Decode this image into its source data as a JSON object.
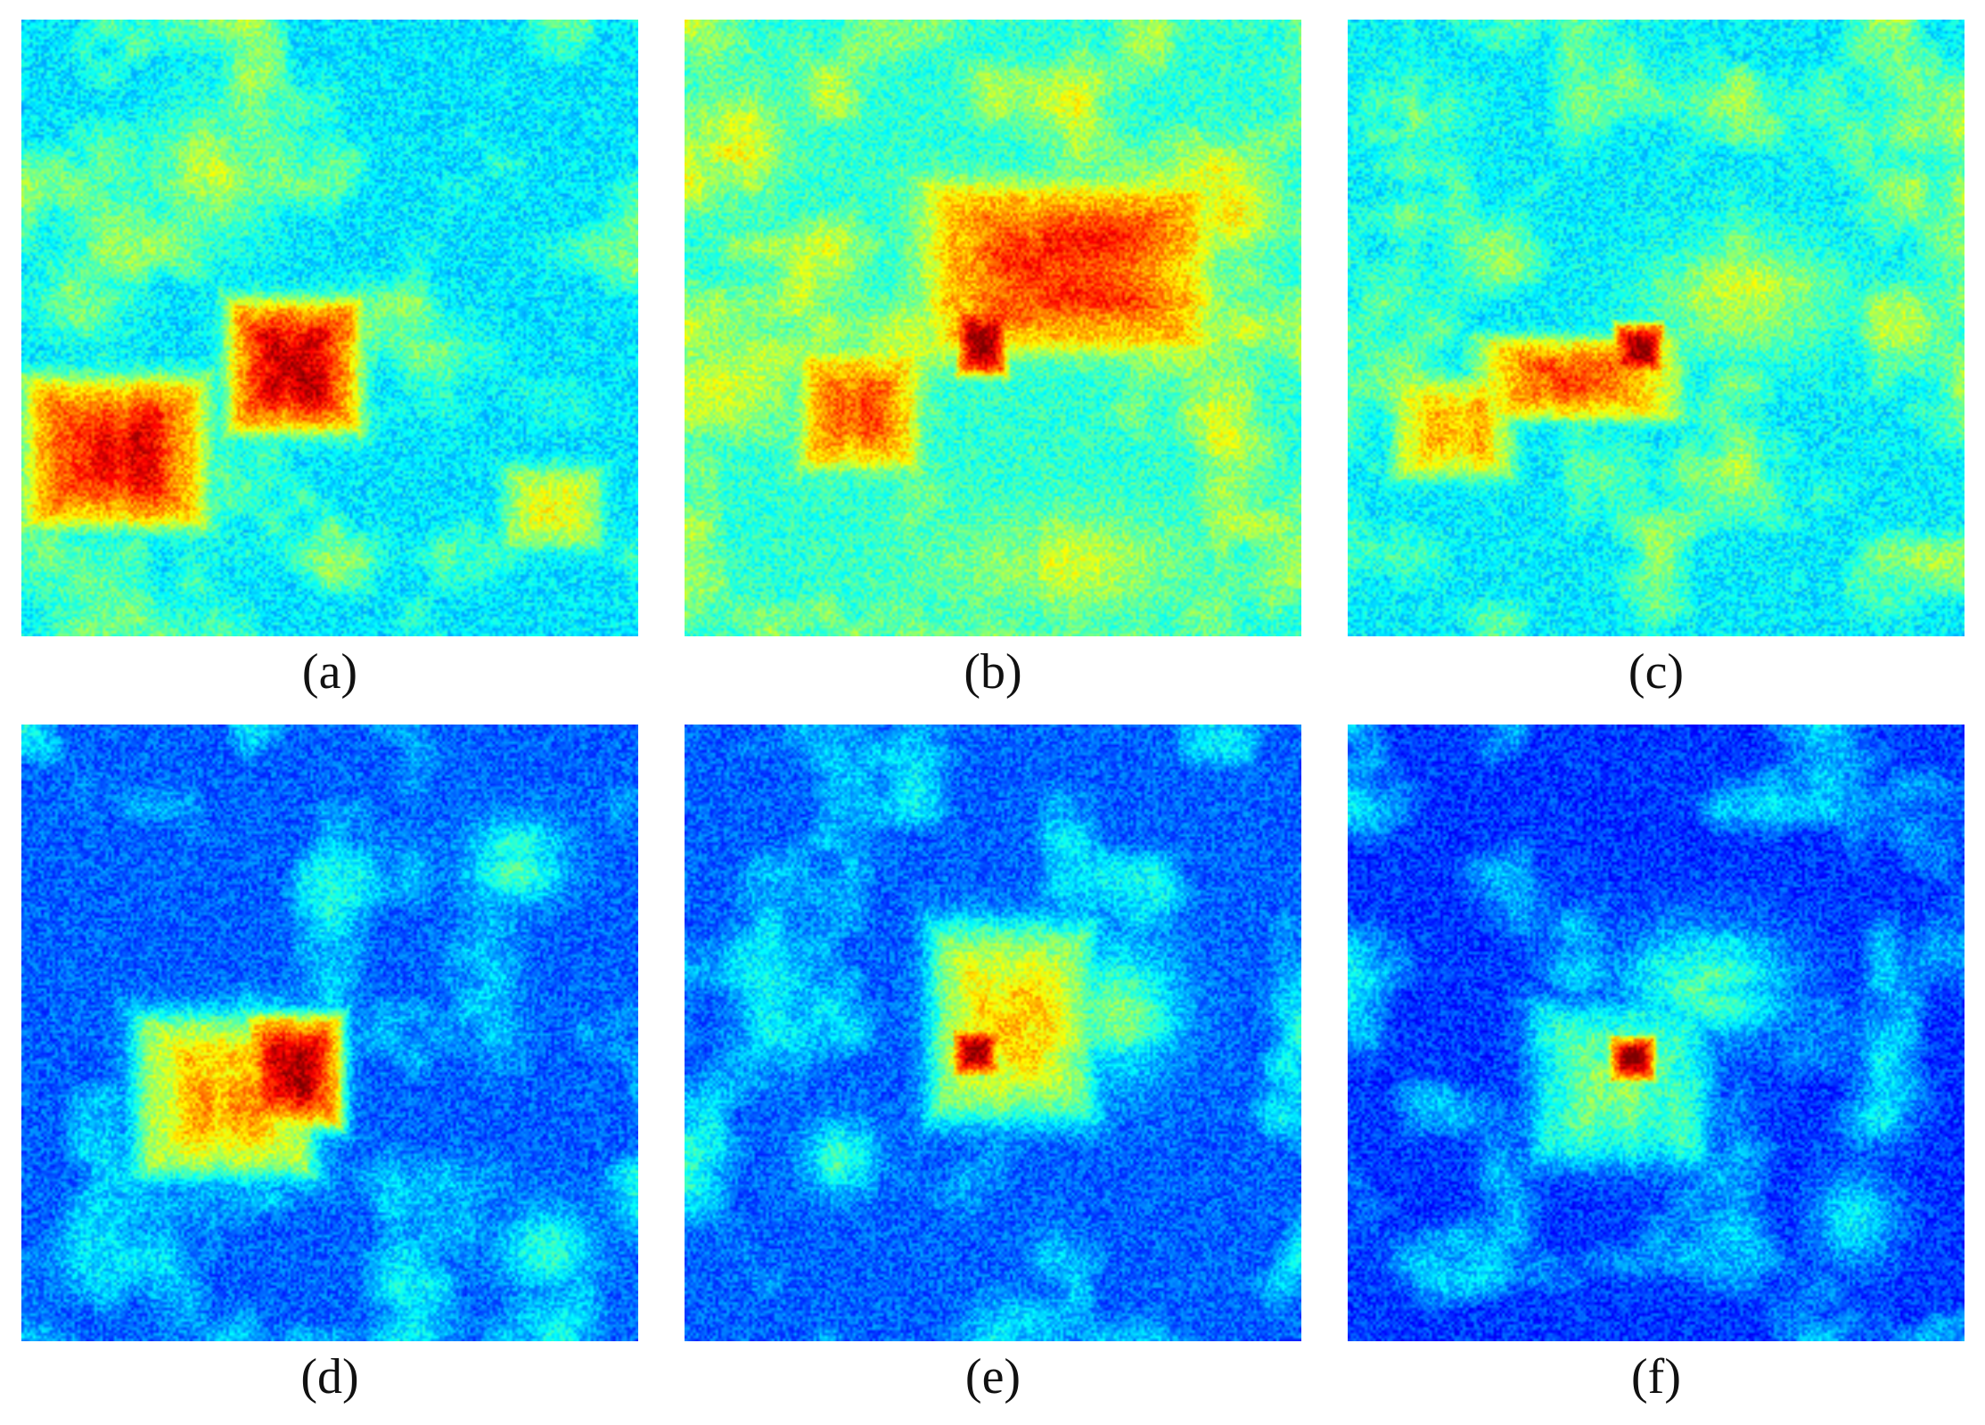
{
  "chart_data": [
    {
      "type": "heatmap",
      "caption": "(a)",
      "colormap": "jet",
      "hotspots": [
        {
          "cx": 0.44,
          "cy": 0.56,
          "rx": 0.08,
          "ry": 0.08,
          "value": 0.95,
          "shape": "square"
        },
        {
          "cx": 0.15,
          "cy": 0.7,
          "rx": 0.11,
          "ry": 0.09,
          "value": 0.9,
          "shape": "square"
        },
        {
          "cx": 0.86,
          "cy": 0.79,
          "rx": 0.06,
          "ry": 0.05,
          "value": 0.6,
          "shape": "square"
        },
        {
          "cx": 0.3,
          "cy": 0.25,
          "rx": 0.1,
          "ry": 0.12,
          "value": 0.55,
          "shape": "blob"
        },
        {
          "cx": 0.1,
          "cy": 0.45,
          "rx": 0.08,
          "ry": 0.07,
          "value": 0.5,
          "shape": "blob"
        }
      ],
      "background": 0.35
    },
    {
      "type": "heatmap",
      "caption": "(b)",
      "colormap": "jet",
      "hotspots": [
        {
          "cx": 0.48,
          "cy": 0.52,
          "rx": 0.03,
          "ry": 0.04,
          "value": 1.0,
          "shape": "square"
        },
        {
          "cx": 0.62,
          "cy": 0.4,
          "rx": 0.17,
          "ry": 0.1,
          "value": 0.85,
          "shape": "square"
        },
        {
          "cx": 0.28,
          "cy": 0.63,
          "rx": 0.07,
          "ry": 0.07,
          "value": 0.78,
          "shape": "square"
        },
        {
          "cx": 0.08,
          "cy": 0.2,
          "rx": 0.08,
          "ry": 0.09,
          "value": 0.6,
          "shape": "blob"
        },
        {
          "cx": 0.88,
          "cy": 0.3,
          "rx": 0.08,
          "ry": 0.08,
          "value": 0.62,
          "shape": "blob"
        },
        {
          "cx": 0.6,
          "cy": 0.88,
          "rx": 0.2,
          "ry": 0.08,
          "value": 0.55,
          "shape": "blob"
        }
      ],
      "background": 0.42
    },
    {
      "type": "heatmap",
      "caption": "(c)",
      "colormap": "jet",
      "hotspots": [
        {
          "cx": 0.47,
          "cy": 0.53,
          "rx": 0.03,
          "ry": 0.03,
          "value": 1.0,
          "shape": "square"
        },
        {
          "cx": 0.37,
          "cy": 0.58,
          "rx": 0.12,
          "ry": 0.05,
          "value": 0.8,
          "shape": "square"
        },
        {
          "cx": 0.17,
          "cy": 0.66,
          "rx": 0.07,
          "ry": 0.06,
          "value": 0.72,
          "shape": "square"
        },
        {
          "cx": 0.64,
          "cy": 0.45,
          "rx": 0.16,
          "ry": 0.1,
          "value": 0.55,
          "shape": "blob"
        },
        {
          "cx": 0.1,
          "cy": 0.15,
          "rx": 0.1,
          "ry": 0.08,
          "value": 0.45,
          "shape": "blob"
        }
      ],
      "background": 0.36
    },
    {
      "type": "heatmap",
      "caption": "(d)",
      "colormap": "jet",
      "hotspots": [
        {
          "cx": 0.44,
          "cy": 0.56,
          "rx": 0.06,
          "ry": 0.07,
          "value": 0.97,
          "shape": "square"
        },
        {
          "cx": 0.33,
          "cy": 0.6,
          "rx": 0.11,
          "ry": 0.1,
          "value": 0.72,
          "shape": "square"
        },
        {
          "cx": 0.8,
          "cy": 0.22,
          "rx": 0.08,
          "ry": 0.07,
          "value": 0.45,
          "shape": "blob"
        },
        {
          "cx": 0.85,
          "cy": 0.85,
          "rx": 0.08,
          "ry": 0.07,
          "value": 0.45,
          "shape": "blob"
        }
      ],
      "background": 0.22
    },
    {
      "type": "heatmap",
      "caption": "(e)",
      "colormap": "jet",
      "hotspots": [
        {
          "cx": 0.47,
          "cy": 0.53,
          "rx": 0.03,
          "ry": 0.03,
          "value": 1.0,
          "shape": "square"
        },
        {
          "cx": 0.53,
          "cy": 0.48,
          "rx": 0.1,
          "ry": 0.12,
          "value": 0.68,
          "shape": "square"
        },
        {
          "cx": 0.7,
          "cy": 0.46,
          "rx": 0.1,
          "ry": 0.12,
          "value": 0.48,
          "shape": "blob"
        },
        {
          "cx": 0.25,
          "cy": 0.7,
          "rx": 0.06,
          "ry": 0.06,
          "value": 0.42,
          "shape": "blob"
        }
      ],
      "background": 0.22
    },
    {
      "type": "heatmap",
      "caption": "(f)",
      "colormap": "jet",
      "hotspots": [
        {
          "cx": 0.46,
          "cy": 0.54,
          "rx": 0.03,
          "ry": 0.03,
          "value": 1.0,
          "shape": "square"
        },
        {
          "cx": 0.44,
          "cy": 0.58,
          "rx": 0.11,
          "ry": 0.1,
          "value": 0.5,
          "shape": "square"
        },
        {
          "cx": 0.58,
          "cy": 0.42,
          "rx": 0.14,
          "ry": 0.1,
          "value": 0.45,
          "shape": "blob"
        },
        {
          "cx": 0.82,
          "cy": 0.8,
          "rx": 0.07,
          "ry": 0.08,
          "value": 0.38,
          "shape": "blob"
        }
      ],
      "background": 0.18
    }
  ]
}
